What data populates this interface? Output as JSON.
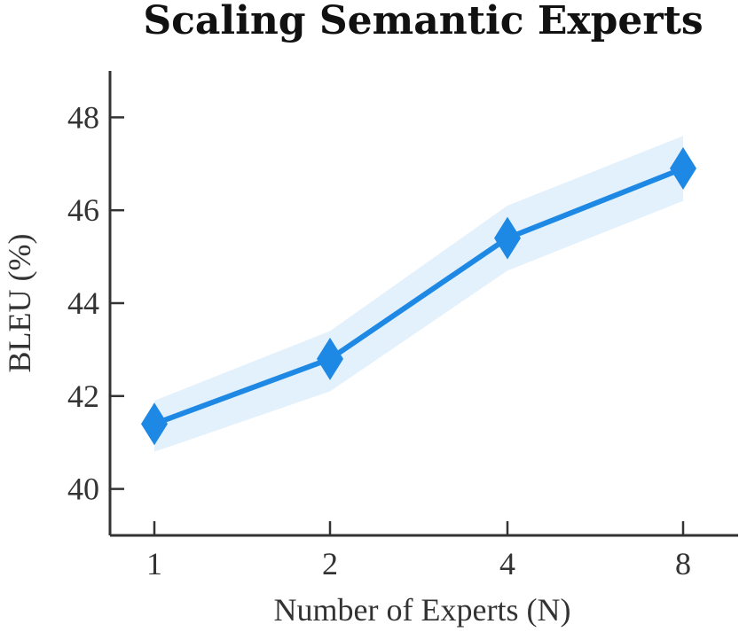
{
  "chart_data": {
    "type": "line",
    "title": "Scaling Semantic Experts",
    "xlabel": "Number of Experts (N)",
    "ylabel": "BLEU (%)",
    "categories": [
      "1",
      "2",
      "4",
      "8"
    ],
    "series": [
      {
        "values": [
          41.4,
          42.8,
          45.4,
          46.9
        ],
        "lower": [
          40.8,
          42.1,
          44.7,
          46.2
        ],
        "upper": [
          41.9,
          43.4,
          46.1,
          47.6
        ]
      }
    ],
    "ylim": [
      39,
      49
    ],
    "yticks": [
      40,
      42,
      44,
      46,
      48
    ],
    "marker": "diamond",
    "grid": false,
    "colors": {
      "line": "#1e88e5",
      "band": "#e3f1fc",
      "axis": "#333333"
    }
  }
}
